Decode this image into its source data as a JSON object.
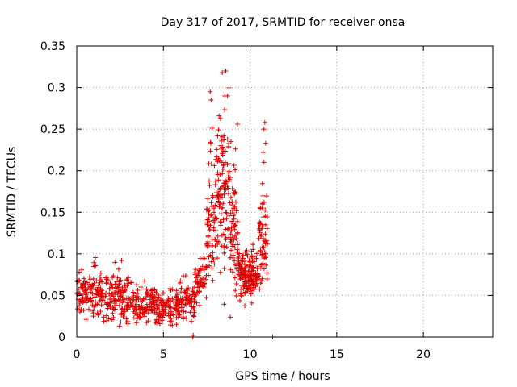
{
  "chart_data": {
    "type": "scatter",
    "title": "Day 317 of 2017, SRMTID for receiver onsa",
    "xlabel": "GPS time / hours",
    "ylabel": "SRMTID / TECUs",
    "xlim": [
      0,
      24
    ],
    "ylim": [
      0,
      0.35
    ],
    "x_ticks": [
      0,
      5,
      10,
      15,
      20
    ],
    "x_tick_labels": [
      "0",
      "5",
      "10",
      "15",
      "20"
    ],
    "y_ticks": [
      0,
      0.05,
      0.1,
      0.15,
      0.2,
      0.25,
      0.3,
      0.35
    ],
    "y_tick_labels": [
      "0",
      "0.05",
      "0.1",
      "0.15",
      "0.2",
      "0.25",
      "0.3",
      "0.35"
    ],
    "grid": true,
    "marker": "+",
    "series_color": "#e00000",
    "segments": [
      {
        "x_start": 0.0,
        "x_end": 1.5,
        "count": 130,
        "mean": 0.052,
        "spread": 0.02
      },
      {
        "x_start": 1.5,
        "x_end": 3.0,
        "count": 130,
        "mean": 0.047,
        "spread": 0.02
      },
      {
        "x_start": 3.0,
        "x_end": 4.5,
        "count": 120,
        "mean": 0.04,
        "spread": 0.017
      },
      {
        "x_start": 4.5,
        "x_end": 5.5,
        "count": 90,
        "mean": 0.035,
        "spread": 0.014
      },
      {
        "x_start": 5.5,
        "x_end": 6.8,
        "count": 110,
        "mean": 0.042,
        "spread": 0.017
      },
      {
        "x_start": 6.8,
        "x_end": 7.5,
        "count": 55,
        "mean": 0.07,
        "spread": 0.018
      },
      {
        "x_start": 7.5,
        "x_end": 8.0,
        "count": 65,
        "mean": 0.13,
        "spread": 0.06
      },
      {
        "x_start": 8.0,
        "x_end": 8.8,
        "count": 120,
        "mean": 0.17,
        "spread": 0.07
      },
      {
        "x_start": 8.8,
        "x_end": 9.3,
        "count": 70,
        "mean": 0.13,
        "spread": 0.06
      },
      {
        "x_start": 9.3,
        "x_end": 10.5,
        "count": 160,
        "mean": 0.075,
        "spread": 0.02
      },
      {
        "x_start": 10.5,
        "x_end": 11.0,
        "count": 60,
        "mean": 0.12,
        "spread": 0.05
      }
    ],
    "highlight_points": [
      {
        "x": 8.6,
        "y": 0.32
      },
      {
        "x": 8.4,
        "y": 0.318
      },
      {
        "x": 8.7,
        "y": 0.29
      },
      {
        "x": 7.7,
        "y": 0.295
      },
      {
        "x": 7.75,
        "y": 0.285
      },
      {
        "x": 8.9,
        "y": 0.235
      },
      {
        "x": 10.85,
        "y": 0.258
      },
      {
        "x": 10.8,
        "y": 0.25
      },
      {
        "x": 10.9,
        "y": 0.233
      },
      {
        "x": 10.75,
        "y": 0.222
      },
      {
        "x": 10.8,
        "y": 0.21
      },
      {
        "x": 11.3,
        "y": 0.0
      },
      {
        "x": 6.7,
        "y": 0.0
      },
      {
        "x": 6.72,
        "y": 0.002
      }
    ]
  }
}
